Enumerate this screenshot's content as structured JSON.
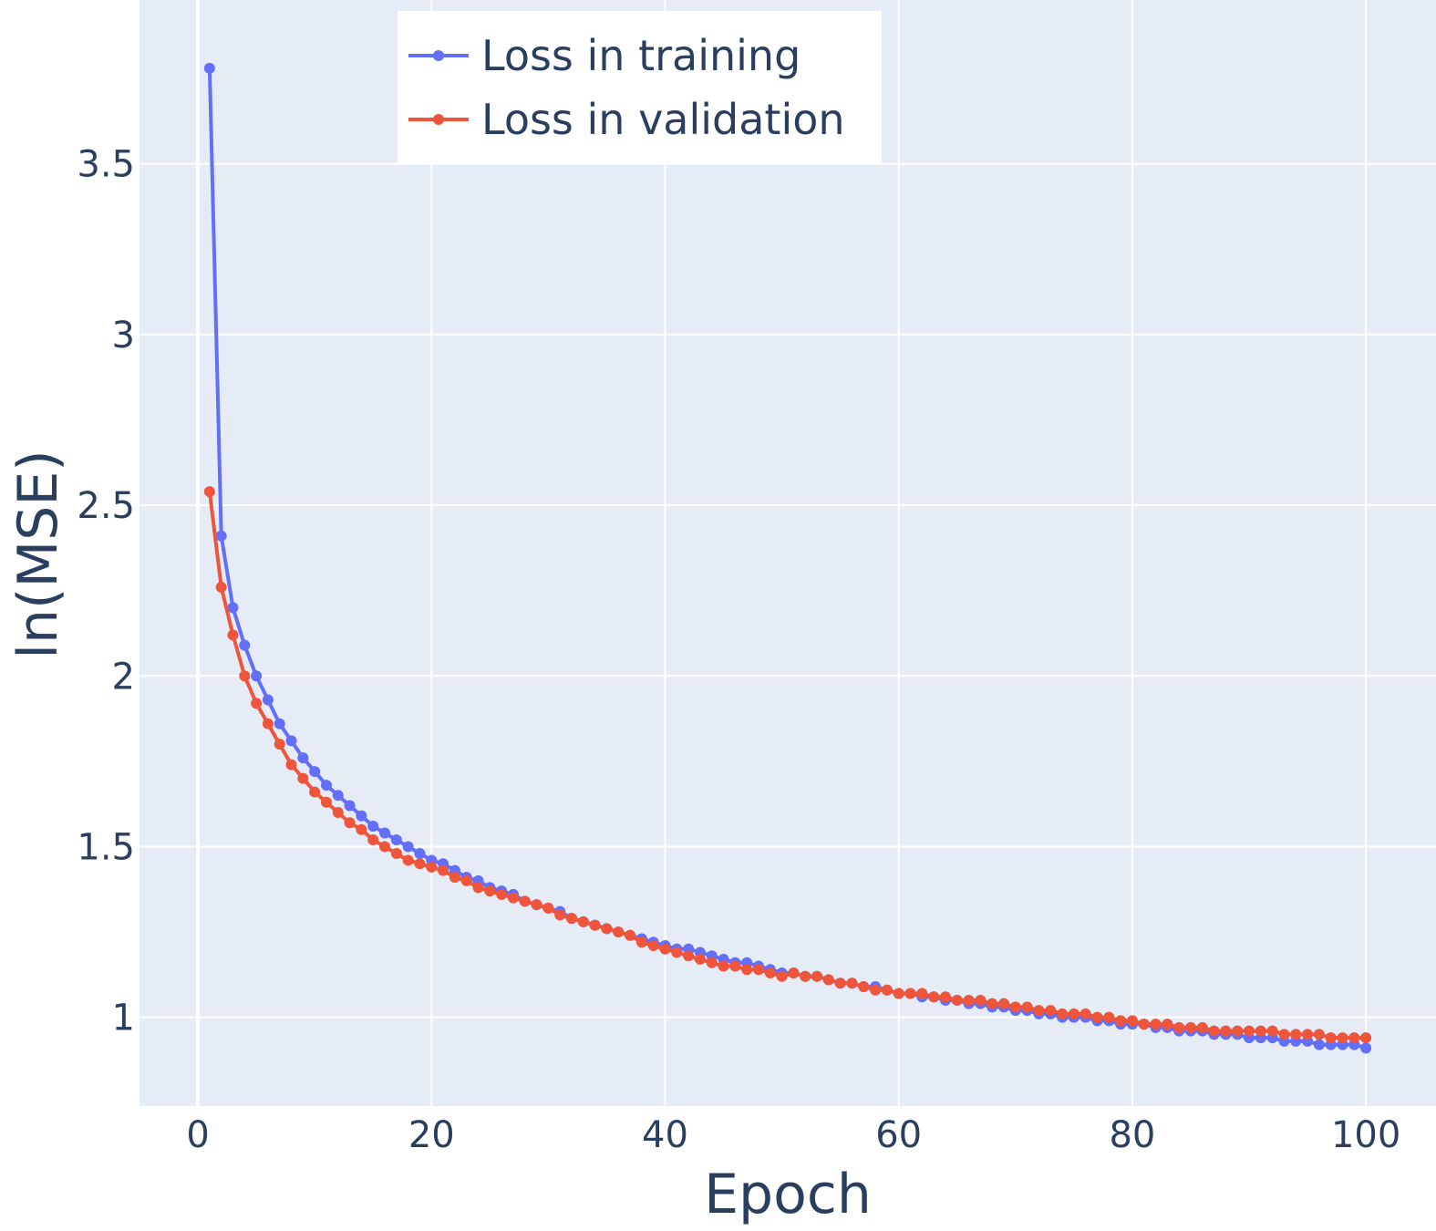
{
  "chart_data": {
    "type": "line",
    "xlabel": "Epoch",
    "ylabel": "ln(MSE)",
    "xlim": [
      -5,
      106
    ],
    "ylim": [
      0.74,
      3.98
    ],
    "xticks": [
      0,
      20,
      40,
      60,
      80,
      100
    ],
    "xtick_labels": [
      "0",
      "20",
      "40",
      "60",
      "80",
      "100"
    ],
    "yticks": [
      1,
      1.5,
      2,
      2.5,
      3,
      3.5
    ],
    "ytick_labels": [
      "1",
      "1.5",
      "2",
      "2.5",
      "3",
      "3.5"
    ],
    "grid": true,
    "legend_position": "top-center",
    "plot_background": "#e5ecf6",
    "grid_color": "#ffffff",
    "series": [
      {
        "name": "Loss in training",
        "color": "#636efa",
        "markers": true,
        "x": [
          1,
          2,
          3,
          4,
          5,
          6,
          7,
          8,
          9,
          10,
          11,
          12,
          13,
          14,
          15,
          16,
          17,
          18,
          19,
          20,
          21,
          22,
          23,
          24,
          25,
          26,
          27,
          28,
          29,
          30,
          31,
          32,
          33,
          34,
          35,
          36,
          37,
          38,
          39,
          40,
          41,
          42,
          43,
          44,
          45,
          46,
          47,
          48,
          49,
          50,
          51,
          52,
          53,
          54,
          55,
          56,
          57,
          58,
          59,
          60,
          61,
          62,
          63,
          64,
          65,
          66,
          67,
          68,
          69,
          70,
          71,
          72,
          73,
          74,
          75,
          76,
          77,
          78,
          79,
          80,
          81,
          82,
          83,
          84,
          85,
          86,
          87,
          88,
          89,
          90,
          91,
          92,
          93,
          94,
          95,
          96,
          97,
          98,
          99,
          100
        ],
        "y": [
          3.78,
          2.41,
          2.2,
          2.09,
          2.0,
          1.93,
          1.86,
          1.81,
          1.76,
          1.72,
          1.68,
          1.65,
          1.62,
          1.59,
          1.56,
          1.54,
          1.52,
          1.5,
          1.48,
          1.46,
          1.45,
          1.43,
          1.41,
          1.4,
          1.38,
          1.37,
          1.36,
          1.34,
          1.33,
          1.32,
          1.31,
          1.29,
          1.28,
          1.27,
          1.26,
          1.25,
          1.24,
          1.23,
          1.22,
          1.21,
          1.2,
          1.2,
          1.19,
          1.18,
          1.17,
          1.16,
          1.16,
          1.15,
          1.14,
          1.13,
          1.13,
          1.12,
          1.12,
          1.11,
          1.1,
          1.1,
          1.09,
          1.09,
          1.08,
          1.07,
          1.07,
          1.06,
          1.06,
          1.05,
          1.05,
          1.04,
          1.04,
          1.03,
          1.03,
          1.02,
          1.02,
          1.01,
          1.01,
          1.0,
          1.0,
          1.0,
          0.99,
          0.99,
          0.98,
          0.98,
          0.98,
          0.97,
          0.97,
          0.96,
          0.96,
          0.96,
          0.95,
          0.95,
          0.95,
          0.94,
          0.94,
          0.94,
          0.93,
          0.93,
          0.93,
          0.92,
          0.92,
          0.92,
          0.92,
          0.91
        ]
      },
      {
        "name": "Loss in validation",
        "color": "#ef553b",
        "markers": true,
        "x": [
          1,
          2,
          3,
          4,
          5,
          6,
          7,
          8,
          9,
          10,
          11,
          12,
          13,
          14,
          15,
          16,
          17,
          18,
          19,
          20,
          21,
          22,
          23,
          24,
          25,
          26,
          27,
          28,
          29,
          30,
          31,
          32,
          33,
          34,
          35,
          36,
          37,
          38,
          39,
          40,
          41,
          42,
          43,
          44,
          45,
          46,
          47,
          48,
          49,
          50,
          51,
          52,
          53,
          54,
          55,
          56,
          57,
          58,
          59,
          60,
          61,
          62,
          63,
          64,
          65,
          66,
          67,
          68,
          69,
          70,
          71,
          72,
          73,
          74,
          75,
          76,
          77,
          78,
          79,
          80,
          81,
          82,
          83,
          84,
          85,
          86,
          87,
          88,
          89,
          90,
          91,
          92,
          93,
          94,
          95,
          96,
          97,
          98,
          99,
          100
        ],
        "y": [
          2.54,
          2.26,
          2.12,
          2.0,
          1.92,
          1.86,
          1.8,
          1.74,
          1.7,
          1.66,
          1.63,
          1.6,
          1.57,
          1.55,
          1.52,
          1.5,
          1.48,
          1.46,
          1.45,
          1.44,
          1.43,
          1.41,
          1.4,
          1.38,
          1.37,
          1.36,
          1.35,
          1.34,
          1.33,
          1.32,
          1.3,
          1.29,
          1.28,
          1.27,
          1.26,
          1.25,
          1.24,
          1.22,
          1.21,
          1.2,
          1.19,
          1.18,
          1.17,
          1.16,
          1.15,
          1.15,
          1.14,
          1.14,
          1.13,
          1.12,
          1.13,
          1.12,
          1.12,
          1.11,
          1.1,
          1.1,
          1.09,
          1.08,
          1.08,
          1.07,
          1.07,
          1.07,
          1.06,
          1.06,
          1.05,
          1.05,
          1.05,
          1.04,
          1.04,
          1.03,
          1.03,
          1.02,
          1.02,
          1.01,
          1.01,
          1.01,
          1.0,
          1.0,
          0.99,
          0.99,
          0.98,
          0.98,
          0.98,
          0.97,
          0.97,
          0.97,
          0.96,
          0.96,
          0.96,
          0.96,
          0.96,
          0.96,
          0.95,
          0.95,
          0.95,
          0.95,
          0.94,
          0.94,
          0.94,
          0.94
        ]
      }
    ]
  }
}
